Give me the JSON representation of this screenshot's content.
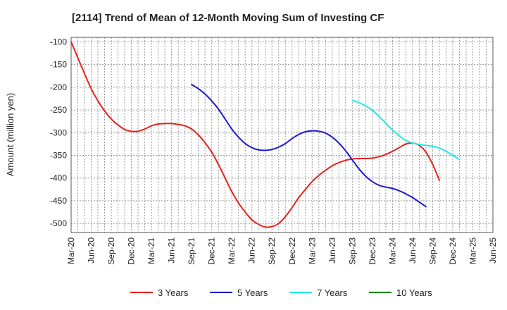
{
  "chart_data": {
    "type": "line",
    "title": "[2114]  Trend of Mean of 12-Month Moving Sum of Investing CF",
    "xlabel": "",
    "ylabel": "Amount (million yen)",
    "ylim": [
      -520,
      -90
    ],
    "yticks": [
      -100,
      -150,
      -200,
      -250,
      -300,
      -350,
      -400,
      -450,
      -500
    ],
    "xticks": [
      "Mar-20",
      "Jun-20",
      "Sep-20",
      "Dec-20",
      "Mar-21",
      "Jun-21",
      "Sep-21",
      "Dec-21",
      "Mar-22",
      "Jun-22",
      "Sep-22",
      "Dec-22",
      "Mar-23",
      "Jun-23",
      "Sep-23",
      "Dec-23",
      "Mar-24",
      "Jun-24",
      "Sep-24",
      "Dec-24",
      "Mar-25",
      "Jun-25"
    ],
    "x_start_month": "Mar-20",
    "grid": true,
    "legend_position": "bottom",
    "series": [
      {
        "name": "3 Years",
        "color": "#e8221b",
        "start_index": 0,
        "values": [
          -100,
          -135,
          -170,
          -203,
          -230,
          -252,
          -270,
          -283,
          -293,
          -297,
          -297,
          -292,
          -285,
          -281,
          -280,
          -280,
          -282,
          -285,
          -292,
          -305,
          -322,
          -343,
          -370,
          -400,
          -430,
          -455,
          -475,
          -492,
          -502,
          -508,
          -507,
          -500,
          -485,
          -465,
          -443,
          -425,
          -408,
          -394,
          -383,
          -373,
          -366,
          -361,
          -358,
          -357,
          -357,
          -356,
          -353,
          -348,
          -341,
          -333,
          -325,
          -323,
          -328,
          -343,
          -370,
          -405
        ]
      },
      {
        "name": "5 Years",
        "color": "#1a1ad8",
        "start_index": 18,
        "values": [
          -194,
          -203,
          -215,
          -230,
          -248,
          -270,
          -292,
          -310,
          -324,
          -333,
          -338,
          -339,
          -337,
          -332,
          -324,
          -313,
          -304,
          -298,
          -296,
          -297,
          -301,
          -310,
          -323,
          -340,
          -360,
          -380,
          -396,
          -408,
          -416,
          -420,
          -423,
          -428,
          -435,
          -443,
          -453,
          -463
        ]
      },
      {
        "name": "7 Years",
        "color": "#22e8e8",
        "start_index": 42,
        "values": [
          -229,
          -234,
          -241,
          -251,
          -264,
          -279,
          -294,
          -307,
          -317,
          -323,
          -326,
          -328,
          -330,
          -334,
          -341,
          -350,
          -359
        ]
      },
      {
        "name": "10 Years",
        "color": "#1a8a1a",
        "start_index": 0,
        "values": []
      }
    ]
  }
}
